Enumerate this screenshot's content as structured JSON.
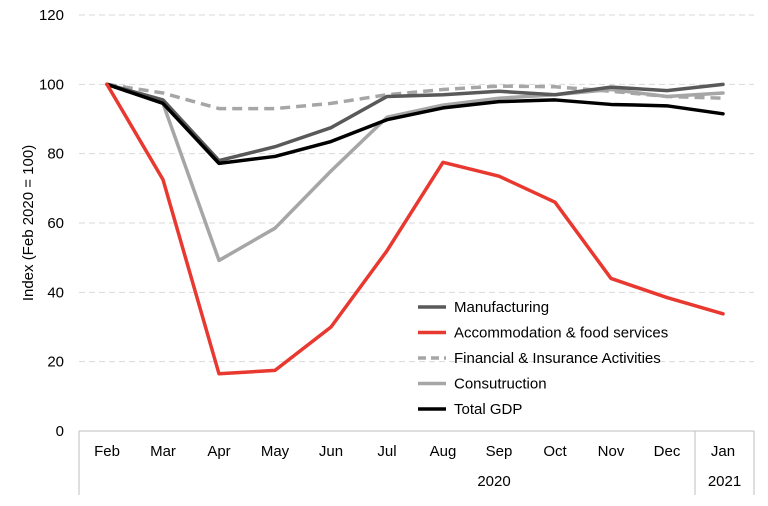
{
  "chart_data": {
    "type": "line",
    "categories": [
      "Feb",
      "Mar",
      "Apr",
      "May",
      "Jun",
      "Jul",
      "Aug",
      "Sep",
      "Oct",
      "Nov",
      "Dec",
      "Jan"
    ],
    "year_groups": [
      {
        "label": "2020",
        "from": 0,
        "to": 10
      },
      {
        "label": "2021",
        "from": 11,
        "to": 11
      }
    ],
    "ylabel": "Index (Feb 2020 = 100)",
    "ylim": [
      0,
      120
    ],
    "yticks": [
      0,
      20,
      40,
      60,
      80,
      100,
      120
    ],
    "grid": "horizontal dashed",
    "legend_position": "bottom-right inside plot",
    "series": [
      {
        "name": "Manufacturing",
        "color": "#595959",
        "dash": "solid",
        "values": [
          100,
          95.5,
          78,
          82,
          87.5,
          96.5,
          97,
          98,
          97,
          99.2,
          98.2,
          100
        ]
      },
      {
        "name": "Accommodation & food services",
        "color": "#e8382f",
        "dash": "solid",
        "values": [
          100,
          72.5,
          16.5,
          17.5,
          30,
          52,
          77.5,
          73.5,
          66,
          44,
          38.5,
          33.8
        ]
      },
      {
        "name": "Financial & Insurance Activities",
        "color": "#a6a6a6",
        "dash": "dashed",
        "values": [
          100,
          97.5,
          93,
          93,
          94.5,
          97,
          98.5,
          99.5,
          99.3,
          98,
          96.5,
          96
        ]
      },
      {
        "name": "Consutruction",
        "color": "#a6a6a6",
        "dash": "solid",
        "values": [
          100,
          94.5,
          49.2,
          58.5,
          75,
          90.5,
          94,
          96,
          97,
          98.5,
          96.5,
          97.5
        ]
      },
      {
        "name": "Total GDP",
        "color": "#000000",
        "dash": "solid",
        "values": [
          100,
          94.5,
          77.2,
          79.2,
          83.5,
          89.8,
          93.2,
          95,
          95.5,
          94.2,
          93.8,
          91.5
        ]
      }
    ]
  }
}
